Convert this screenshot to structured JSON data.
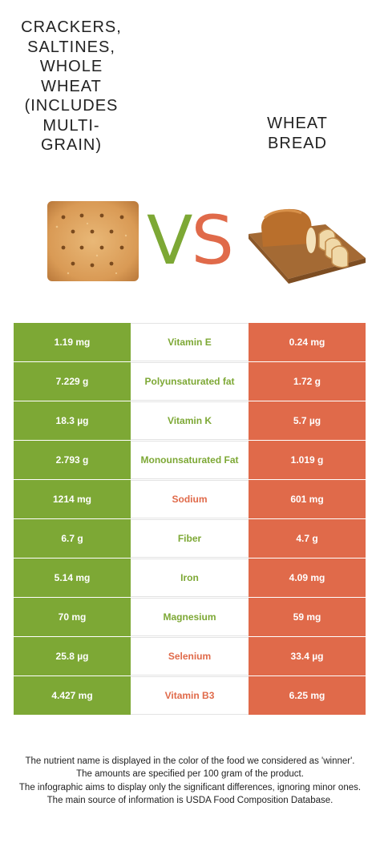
{
  "foods": {
    "left_name": "Crackers, saltines, whole wheat (includes multi-grain)",
    "right_name": "Wheat bread",
    "vs_v": "V",
    "vs_s": "S"
  },
  "colors": {
    "left_accent": "#7da835",
    "right_accent": "#e06a4a"
  },
  "nutrients": [
    {
      "name": "Vitamin E",
      "left": "1.19 mg",
      "right": "0.24 mg",
      "winner": "left"
    },
    {
      "name": "Polyunsaturated fat",
      "left": "7.229 g",
      "right": "1.72 g",
      "winner": "left"
    },
    {
      "name": "Vitamin K",
      "left": "18.3 µg",
      "right": "5.7 µg",
      "winner": "left"
    },
    {
      "name": "Monounsaturated Fat",
      "left": "2.793 g",
      "right": "1.019 g",
      "winner": "left"
    },
    {
      "name": "Sodium",
      "left": "1214 mg",
      "right": "601 mg",
      "winner": "right"
    },
    {
      "name": "Fiber",
      "left": "6.7 g",
      "right": "4.7 g",
      "winner": "left"
    },
    {
      "name": "Iron",
      "left": "5.14 mg",
      "right": "4.09 mg",
      "winner": "left"
    },
    {
      "name": "Magnesium",
      "left": "70 mg",
      "right": "59 mg",
      "winner": "left"
    },
    {
      "name": "Selenium",
      "left": "25.8 µg",
      "right": "33.4 µg",
      "winner": "right"
    },
    {
      "name": "Vitamin B3",
      "left": "4.427 mg",
      "right": "6.25 mg",
      "winner": "right"
    }
  ],
  "footnote": {
    "line1": "The nutrient name is displayed in the color of the food we considered as 'winner'.",
    "line2": "The amounts are specified per 100 gram of the product.",
    "line3": "The infographic aims to display only the significant differences, ignoring minor ones.",
    "line4": "The main source of information is USDA Food Composition Database."
  }
}
